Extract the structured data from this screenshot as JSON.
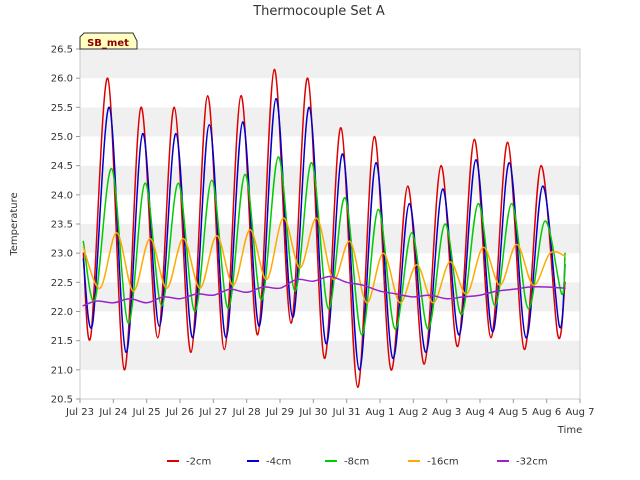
{
  "chart_data": {
    "type": "line",
    "title": "Thermocouple Set A",
    "xlabel": "Time",
    "ylabel": "Temperature",
    "badge": "SB_met",
    "x_range": [
      "Jul 23",
      "Aug 7"
    ],
    "ylim": [
      20.5,
      26.5
    ],
    "y_ticks": [
      20.5,
      21.0,
      21.5,
      22.0,
      22.5,
      23.0,
      23.5,
      24.0,
      24.5,
      25.0,
      25.5,
      26.0,
      26.5
    ],
    "x_ticks": [
      "Jul 23",
      "Jul 24",
      "Jul 25",
      "Jul 26",
      "Jul 27",
      "Jul 28",
      "Jul 29",
      "Jul 30",
      "Jul 31",
      "Aug 1",
      "Aug 2",
      "Aug 3",
      "Aug 4",
      "Aug 5",
      "Aug 6",
      "Aug 7"
    ],
    "grid": "horizontal bands",
    "legend_position": "bottom",
    "series": [
      {
        "name": "-2cm",
        "color": "#dd0000",
        "x": [
          0.1,
          0.33,
          0.83,
          1.33,
          1.83,
          2.33,
          2.83,
          3.33,
          3.83,
          4.33,
          4.83,
          5.33,
          5.83,
          6.33,
          6.83,
          7.33,
          7.83,
          8.33,
          8.83,
          9.33,
          9.83,
          10.33,
          10.83,
          11.33,
          11.83,
          12.33,
          12.83,
          13.33,
          13.83,
          14.33,
          14.55
        ],
        "y": [
          23.0,
          21.6,
          26.0,
          21.0,
          25.5,
          21.55,
          25.5,
          21.3,
          25.7,
          21.35,
          25.7,
          21.6,
          26.15,
          21.8,
          26.0,
          21.2,
          25.15,
          20.7,
          25.0,
          21.0,
          24.15,
          21.1,
          24.5,
          21.4,
          24.95,
          21.55,
          24.9,
          21.35,
          24.5,
          21.6,
          22.5
        ]
      },
      {
        "name": "-4cm",
        "color": "#0000cc",
        "x": [
          0.1,
          0.38,
          0.88,
          1.38,
          1.88,
          2.38,
          2.88,
          3.38,
          3.88,
          4.38,
          4.88,
          5.38,
          5.88,
          6.38,
          6.88,
          7.38,
          7.88,
          8.38,
          8.88,
          9.38,
          9.88,
          10.38,
          10.88,
          11.38,
          11.88,
          12.38,
          12.88,
          13.38,
          13.88,
          14.38,
          14.55
        ],
        "y": [
          22.9,
          21.8,
          25.5,
          21.3,
          25.05,
          21.75,
          25.05,
          21.55,
          25.2,
          21.55,
          25.25,
          21.75,
          25.65,
          21.9,
          25.5,
          21.45,
          24.7,
          21.0,
          24.55,
          21.2,
          23.85,
          21.3,
          24.1,
          21.6,
          24.6,
          21.65,
          24.55,
          21.55,
          24.15,
          21.75,
          22.8
        ]
      },
      {
        "name": "-8cm",
        "color": "#00cc00",
        "x": [
          0.1,
          0.45,
          0.95,
          1.45,
          1.95,
          2.45,
          2.95,
          3.45,
          3.95,
          4.45,
          4.95,
          5.45,
          5.95,
          6.45,
          6.95,
          7.45,
          7.95,
          8.45,
          8.95,
          9.45,
          9.95,
          10.45,
          10.95,
          11.45,
          11.95,
          12.45,
          12.95,
          13.45,
          13.95,
          14.45,
          14.55
        ],
        "y": [
          23.2,
          22.2,
          24.45,
          21.8,
          24.2,
          22.1,
          24.2,
          22.0,
          24.25,
          22.05,
          24.35,
          22.2,
          24.65,
          22.35,
          24.55,
          22.05,
          23.95,
          21.6,
          23.75,
          21.7,
          23.35,
          21.7,
          23.5,
          21.95,
          23.85,
          22.1,
          23.85,
          22.05,
          23.55,
          22.3,
          23.0
        ]
      },
      {
        "name": "-16cm",
        "color": "#ffaa00",
        "x": [
          0.1,
          0.6,
          1.1,
          1.6,
          2.1,
          2.6,
          3.1,
          3.6,
          4.1,
          4.6,
          5.1,
          5.6,
          6.1,
          6.6,
          7.1,
          7.6,
          8.1,
          8.6,
          9.1,
          9.6,
          10.1,
          10.6,
          11.1,
          11.6,
          12.1,
          12.6,
          13.1,
          13.6,
          14.1,
          14.55
        ],
        "y": [
          23.1,
          22.4,
          23.35,
          22.35,
          23.25,
          22.4,
          23.25,
          22.4,
          23.3,
          22.45,
          23.4,
          22.55,
          23.6,
          22.75,
          23.6,
          22.55,
          23.2,
          22.15,
          23.0,
          22.15,
          22.8,
          22.15,
          22.85,
          22.3,
          23.1,
          22.45,
          23.15,
          22.45,
          23.0,
          22.95
        ]
      },
      {
        "name": "-32cm",
        "color": "#9922cc",
        "x": [
          0.1,
          0.5,
          1.0,
          1.5,
          2.0,
          2.5,
          3.0,
          3.5,
          4.0,
          4.5,
          5.0,
          5.5,
          6.0,
          6.5,
          7.0,
          7.5,
          8.0,
          8.5,
          9.0,
          9.5,
          10.0,
          10.5,
          11.0,
          11.5,
          12.0,
          12.5,
          13.0,
          13.5,
          14.0,
          14.55
        ],
        "y": [
          22.1,
          22.18,
          22.15,
          22.22,
          22.15,
          22.25,
          22.22,
          22.3,
          22.28,
          22.38,
          22.33,
          22.42,
          22.4,
          22.55,
          22.52,
          22.6,
          22.5,
          22.45,
          22.35,
          22.3,
          22.25,
          22.28,
          22.22,
          22.25,
          22.28,
          22.35,
          22.38,
          22.42,
          22.42,
          22.4
        ]
      }
    ]
  }
}
